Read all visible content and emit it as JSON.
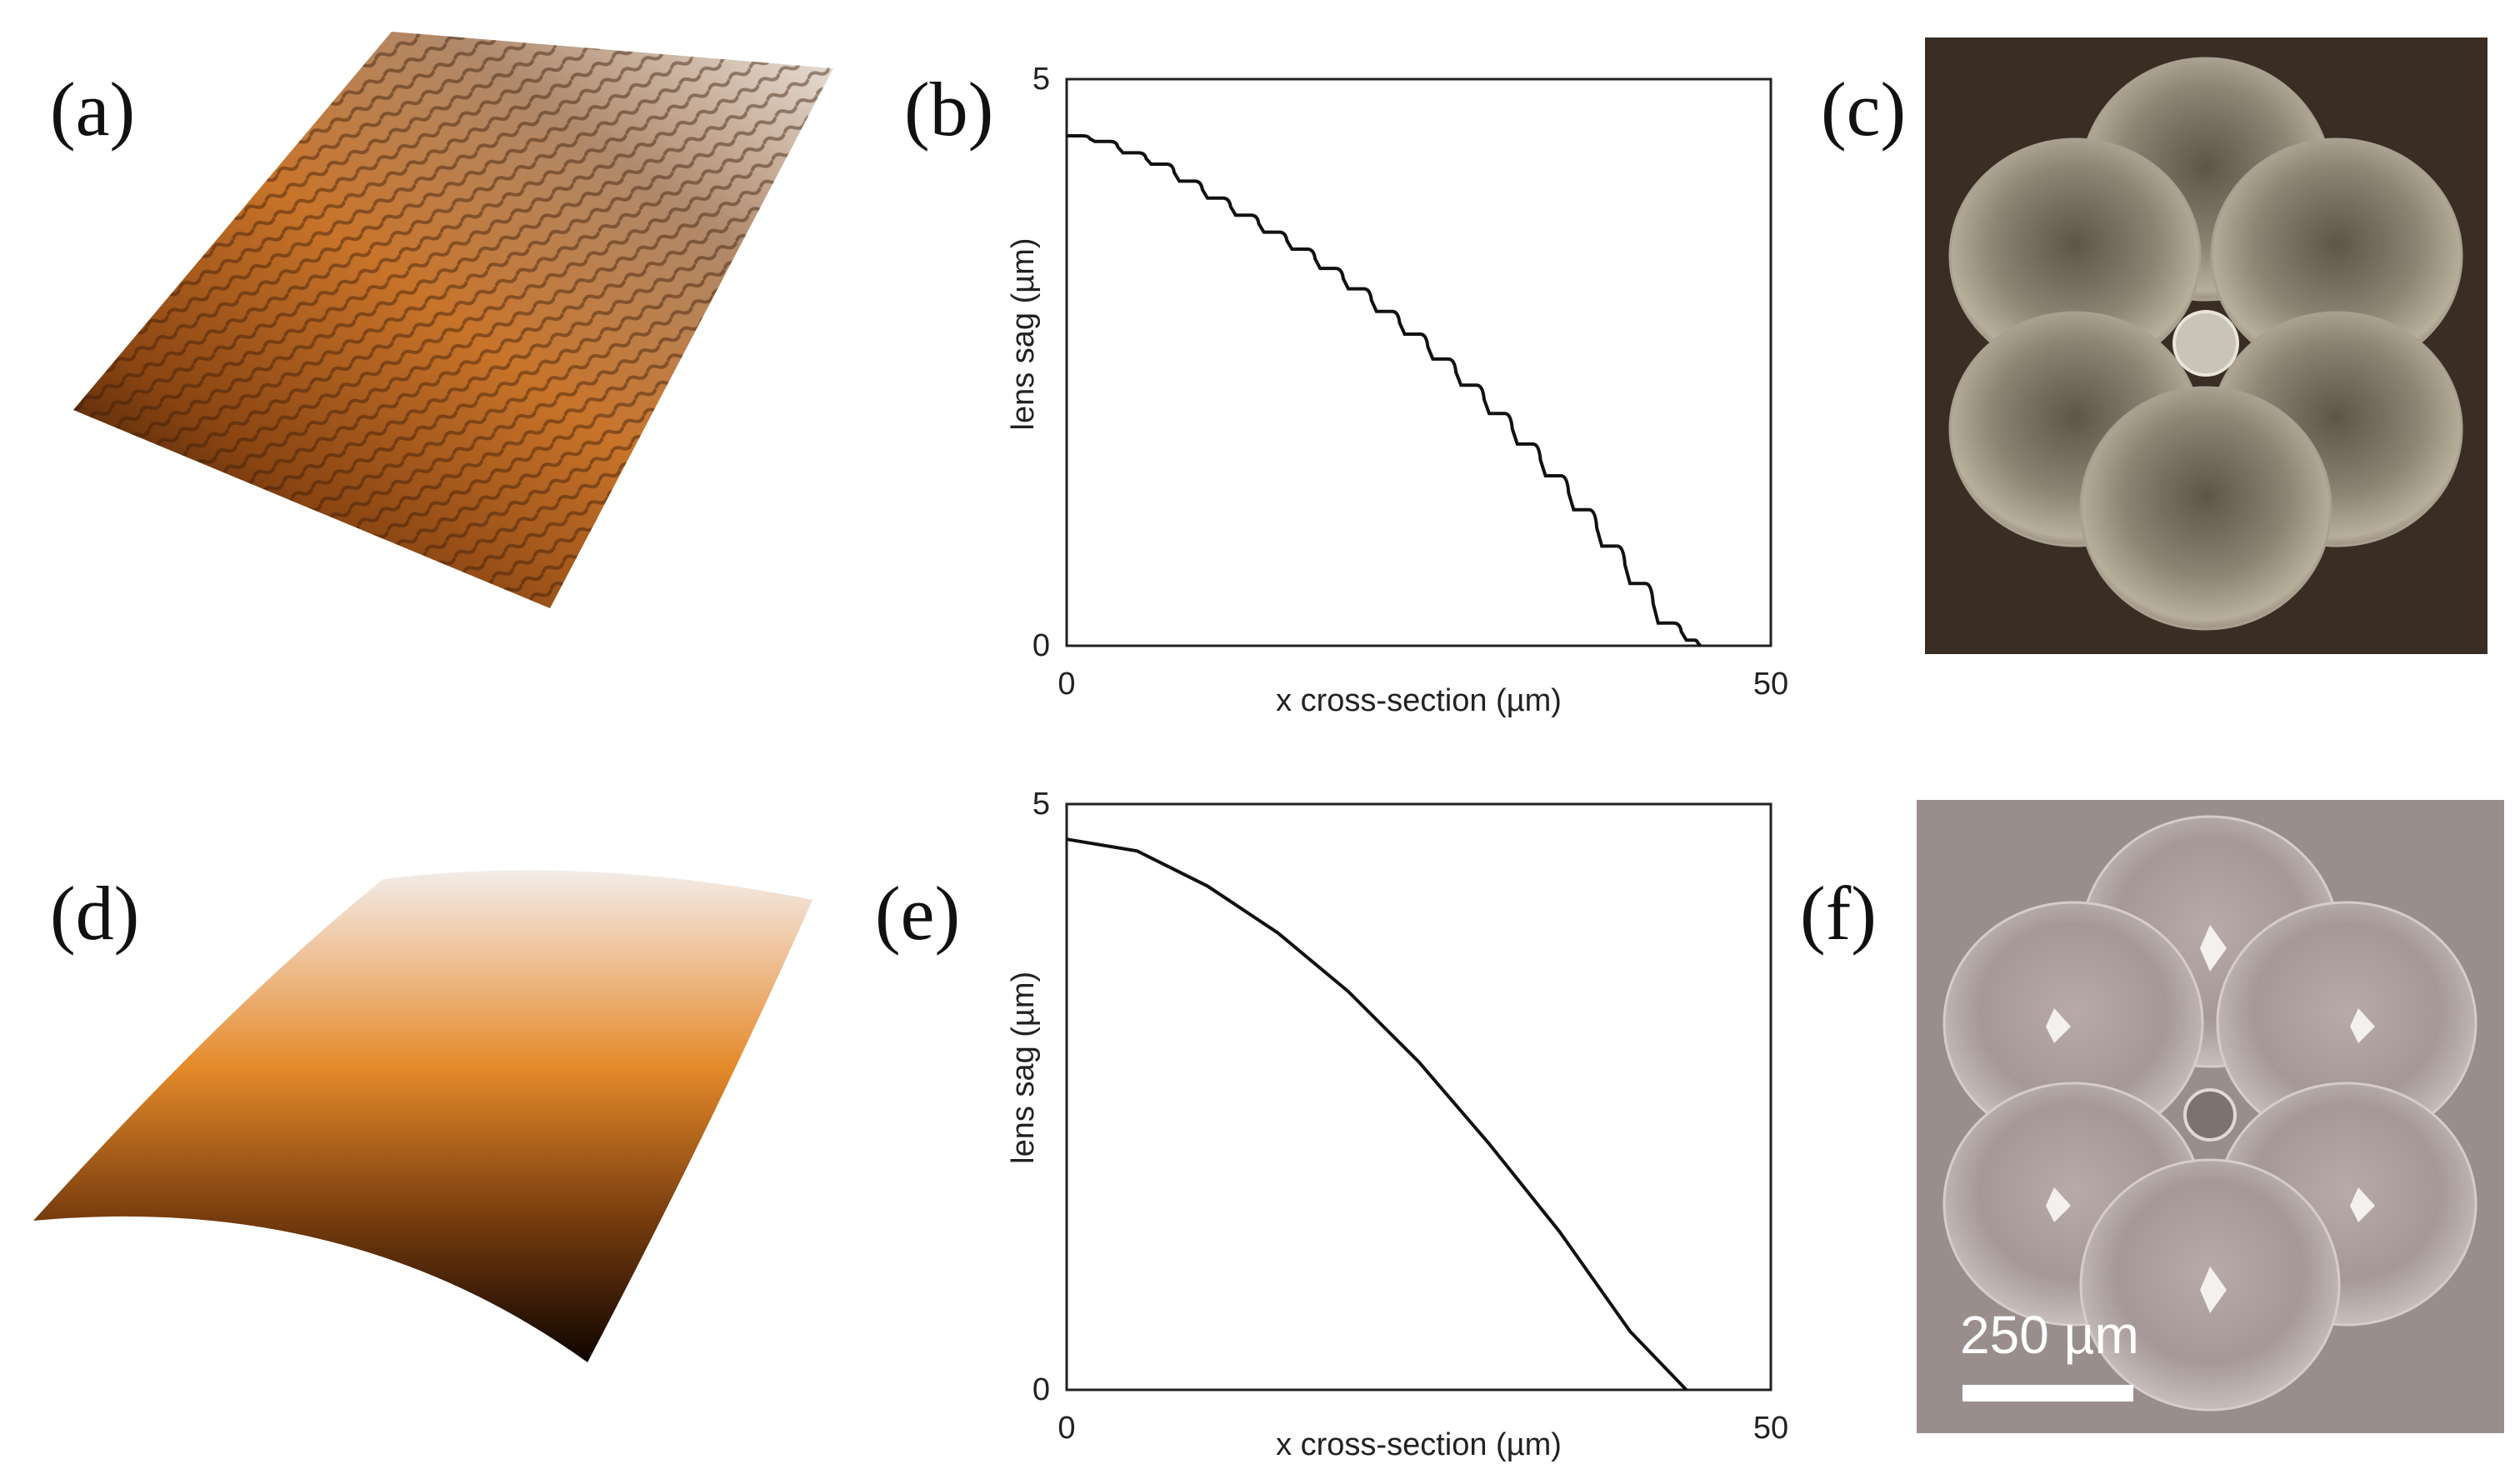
{
  "panels": {
    "a": {
      "label": "(a)"
    },
    "b": {
      "label": "(b)"
    },
    "c": {
      "label": "(c)"
    },
    "d": {
      "label": "(d)"
    },
    "e": {
      "label": "(e)"
    },
    "f": {
      "label": "(f)"
    }
  },
  "scale_bar": {
    "text": "250 µm"
  },
  "colors": {
    "surface_dark": "#1a0a02",
    "surface_mid": "#c8742a",
    "surface_light": "#e8e0d8",
    "photo_c_bg": "#3a2e24",
    "photo_f_bg": "#9a8e8c"
  },
  "chart_data": [
    {
      "type": "line",
      "panel": "b",
      "xlabel": "x cross-section (µm)",
      "ylabel": "lens sag (µm)",
      "xlim": [
        0,
        50
      ],
      "ylim": [
        0,
        5
      ],
      "xticks": [
        "0",
        "50"
      ],
      "yticks": [
        "0",
        "5"
      ],
      "stepped": true,
      "x": [
        0,
        2,
        4,
        6,
        8,
        10,
        12,
        14,
        16,
        18,
        20,
        22,
        24,
        26,
        28,
        30,
        32,
        34,
        36,
        38,
        40,
        42,
        44,
        45
      ],
      "y": [
        4.5,
        4.45,
        4.35,
        4.25,
        4.1,
        3.95,
        3.8,
        3.65,
        3.5,
        3.33,
        3.15,
        2.95,
        2.75,
        2.53,
        2.3,
        2.05,
        1.78,
        1.5,
        1.2,
        0.88,
        0.55,
        0.2,
        0.05,
        0
      ]
    },
    {
      "type": "line",
      "panel": "e",
      "xlabel": "x cross-section (µm)",
      "ylabel": "lens sag (µm)",
      "xlim": [
        0,
        50
      ],
      "ylim": [
        0,
        5
      ],
      "xticks": [
        "0",
        "50"
      ],
      "yticks": [
        "0",
        "5"
      ],
      "stepped": false,
      "x": [
        0,
        5,
        10,
        15,
        20,
        25,
        30,
        35,
        40,
        44
      ],
      "y": [
        4.7,
        4.6,
        4.3,
        3.9,
        3.4,
        2.8,
        2.1,
        1.35,
        0.5,
        0
      ]
    }
  ]
}
